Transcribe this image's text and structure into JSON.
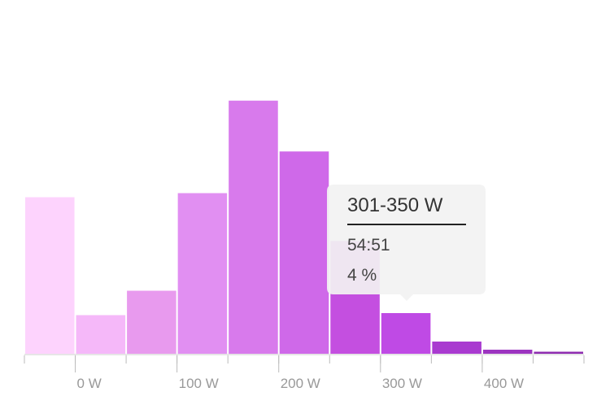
{
  "chart_data": {
    "type": "histogram",
    "bins": [
      -50,
      0,
      50,
      100,
      150,
      200,
      250,
      300,
      350,
      400,
      450,
      500
    ],
    "values": [
      15.4,
      3.8,
      6.2,
      15.8,
      24.9,
      19.9,
      11.1,
      4,
      1.2,
      0.4,
      0.2
    ],
    "colors": [
      "#fdd3fd",
      "#f5b8f9",
      "#e89aee",
      "#e18ff2",
      "#d87aec",
      "#cf69e9",
      "#c44fe0",
      "#bf4ae5",
      "#a93ad0",
      "#9c35c0",
      "#8e2cb0"
    ],
    "xlim": [
      -50,
      500
    ],
    "ylim": [
      0,
      32
    ],
    "xticks": [
      {
        "value": 0,
        "label": "0 W"
      },
      {
        "value": 100,
        "label": "100 W"
      },
      {
        "value": 200,
        "label": "200 W"
      },
      {
        "value": 300,
        "label": "300 W"
      },
      {
        "value": 400,
        "label": "400 W"
      }
    ],
    "tooltip": {
      "bin": 7,
      "title": "301-350 W",
      "lines": [
        "54:51",
        "4 %"
      ]
    }
  }
}
